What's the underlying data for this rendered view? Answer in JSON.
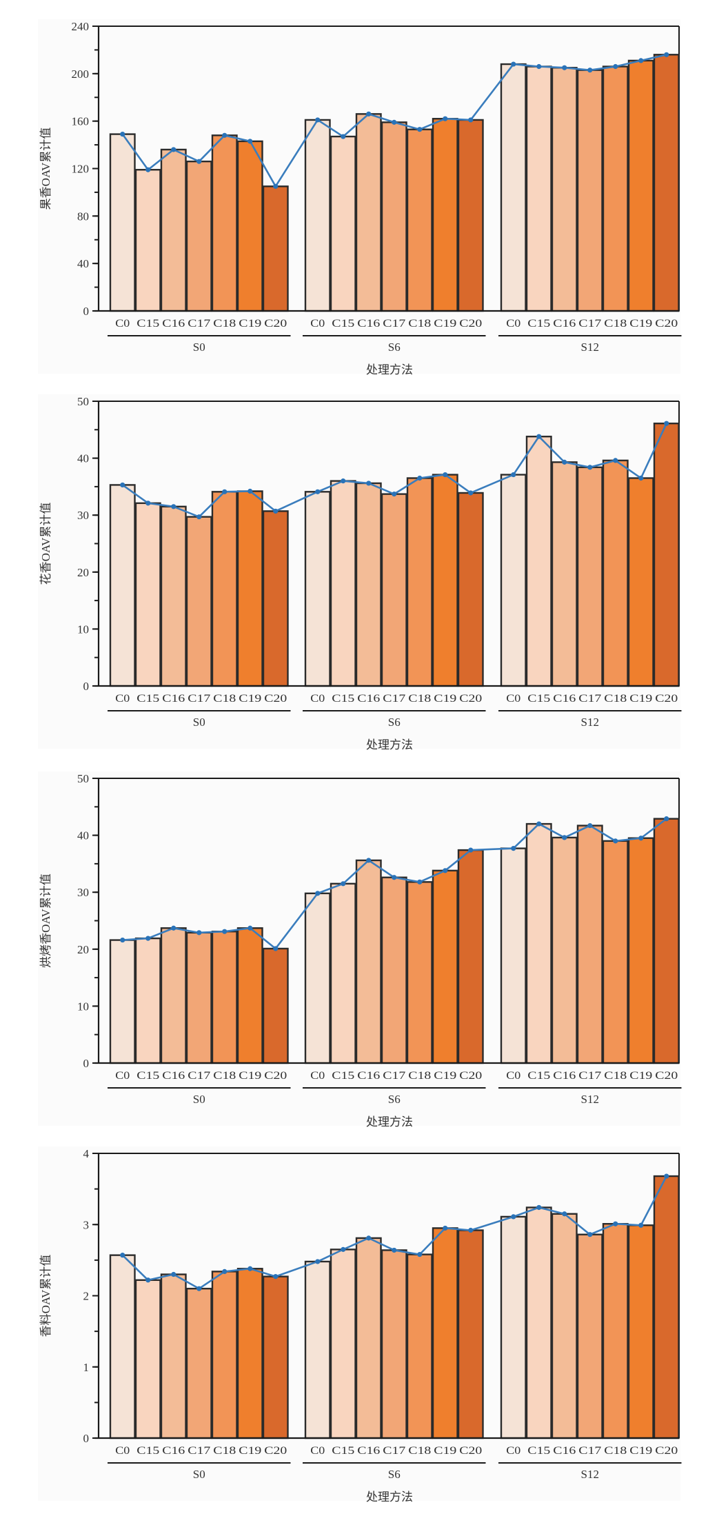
{
  "colors": {
    "bars": [
      "#f5e3d6",
      "#f9d5bf",
      "#f3bc97",
      "#f2a676",
      "#f29456",
      "#ef7f2d",
      "#d9692c"
    ],
    "line": "#3a7dbd",
    "marker": "#2a73b8",
    "panel_bg": "#fbfbfb",
    "axis": "#1a1a1a"
  },
  "chart_data": [
    {
      "type": "bar",
      "ylabel": "果香OAV累计值",
      "xlabel": "处理方法",
      "ylim": [
        0,
        240
      ],
      "yticks": [
        0,
        40,
        80,
        120,
        160,
        200,
        240
      ],
      "minor_step": 20,
      "groups": [
        "S0",
        "S6",
        "S12"
      ],
      "categories": [
        "C0",
        "C15",
        "C16",
        "C17",
        "C18",
        "C19",
        "C20"
      ],
      "series": [
        {
          "name": "S0",
          "values": [
            149,
            119,
            136,
            126,
            148,
            143,
            105
          ]
        },
        {
          "name": "S6",
          "values": [
            161,
            147,
            166,
            159,
            153,
            162,
            161
          ]
        },
        {
          "name": "S12",
          "values": [
            208,
            206,
            205,
            203,
            206,
            211,
            216
          ]
        }
      ],
      "overlay": "line"
    },
    {
      "type": "bar",
      "ylabel": "花香OAV累计值",
      "xlabel": "处理方法",
      "ylim": [
        0,
        50
      ],
      "yticks": [
        0,
        10,
        20,
        30,
        40,
        50
      ],
      "minor_step": 5,
      "groups": [
        "S0",
        "S6",
        "S12"
      ],
      "categories": [
        "C0",
        "C15",
        "C16",
        "C17",
        "C18",
        "C19",
        "C20"
      ],
      "series": [
        {
          "name": "S0",
          "values": [
            35.3,
            32.1,
            31.5,
            29.7,
            34.1,
            34.2,
            30.7
          ]
        },
        {
          "name": "S6",
          "values": [
            34.1,
            36.0,
            35.6,
            33.7,
            36.5,
            37.1,
            33.9
          ]
        },
        {
          "name": "S12",
          "values": [
            37.1,
            43.8,
            39.3,
            38.4,
            39.6,
            36.5,
            46.1
          ]
        }
      ],
      "overlay": "line"
    },
    {
      "type": "bar",
      "ylabel": "烘烤香OAV累计值",
      "xlabel": "处理方法",
      "ylim": [
        0,
        50
      ],
      "yticks": [
        0,
        10,
        20,
        30,
        40,
        50
      ],
      "minor_step": 5,
      "groups": [
        "S0",
        "S6",
        "S12"
      ],
      "categories": [
        "C0",
        "C15",
        "C16",
        "C17",
        "C18",
        "C19",
        "C20"
      ],
      "series": [
        {
          "name": "S0",
          "values": [
            21.6,
            21.9,
            23.7,
            22.9,
            23.1,
            23.7,
            20.1
          ]
        },
        {
          "name": "S6",
          "values": [
            29.8,
            31.5,
            35.6,
            32.6,
            31.8,
            33.8,
            37.4
          ]
        },
        {
          "name": "S12",
          "values": [
            37.7,
            42.0,
            39.6,
            41.7,
            39.0,
            39.5,
            42.9
          ]
        }
      ],
      "overlay": "line"
    },
    {
      "type": "bar",
      "ylabel": "香料OAV累计值",
      "xlabel": "处理方法",
      "ylim": [
        0,
        4
      ],
      "yticks": [
        0,
        1,
        2,
        3,
        4
      ],
      "minor_step": 0.5,
      "groups": [
        "S0",
        "S6",
        "S12"
      ],
      "categories": [
        "C0",
        "C15",
        "C16",
        "C17",
        "C18",
        "C19",
        "C20"
      ],
      "series": [
        {
          "name": "S0",
          "values": [
            2.57,
            2.22,
            2.3,
            2.1,
            2.34,
            2.38,
            2.27
          ]
        },
        {
          "name": "S6",
          "values": [
            2.48,
            2.65,
            2.81,
            2.64,
            2.58,
            2.95,
            2.92
          ]
        },
        {
          "name": "S12",
          "values": [
            3.11,
            3.24,
            3.15,
            2.86,
            3.01,
            2.99,
            3.68
          ]
        }
      ],
      "overlay": "line"
    }
  ]
}
